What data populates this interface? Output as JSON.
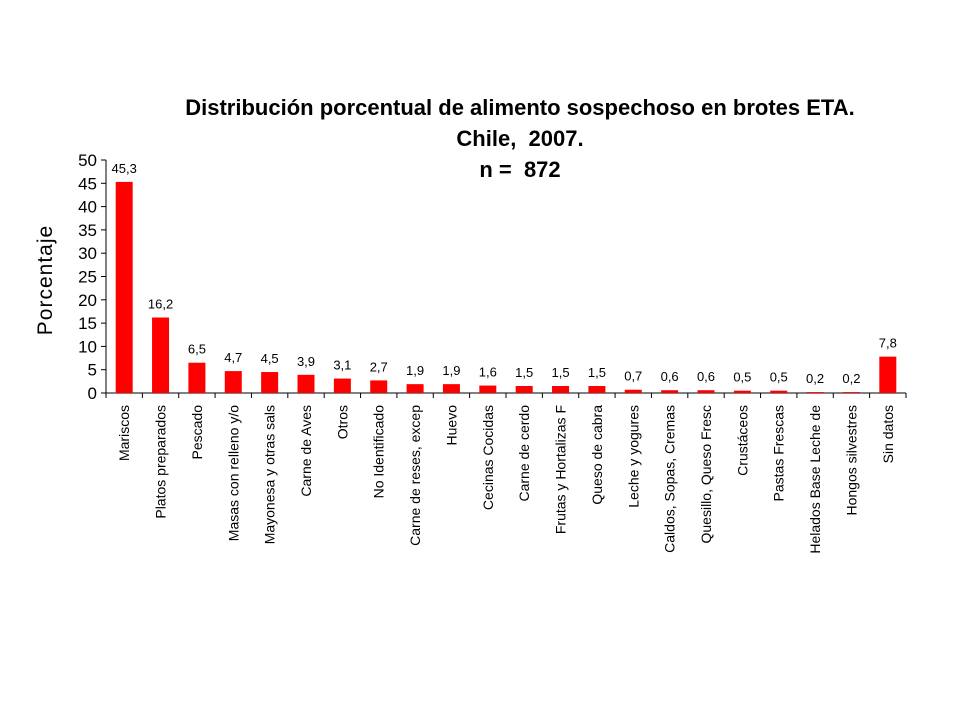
{
  "chart_data": {
    "type": "bar",
    "title": "Distribución porcentual de alimento sospechoso en brotes ETA.",
    "subtitle": "Chile,  2007.",
    "subtitle2": "n =  872",
    "xlabel": "",
    "ylabel": "Porcentaje",
    "ylim": [
      0,
      50
    ],
    "yticks": [
      0,
      5,
      10,
      15,
      20,
      25,
      30,
      35,
      40,
      45,
      50
    ],
    "grid": false,
    "bar_color": "#ff0000",
    "categories": [
      "Mariscos",
      "Platos preparados",
      "Pescado",
      "Masas con relleno y/o",
      "Mayonesa y otras sals",
      "Carne de Aves",
      "Otros",
      "No Identificado",
      "Carne de reses, excep",
      "Huevo",
      "Cecinas Cocidas",
      "Carne de cerdo",
      "Frutas y Hortalizas F",
      "Queso de cabra",
      "Leche y yogures",
      "Caldos, Sopas, Cremas",
      "Quesillo, Queso Fresc",
      "Crustáceos",
      "Pastas Frescas",
      "Helados Base Leche de",
      "Hongos silvestres",
      "Sin datos"
    ],
    "values": [
      45.3,
      16.2,
      6.5,
      4.7,
      4.5,
      3.9,
      3.1,
      2.7,
      1.9,
      1.9,
      1.6,
      1.5,
      1.5,
      1.5,
      0.7,
      0.6,
      0.6,
      0.5,
      0.5,
      0.2,
      0.2,
      7.8
    ],
    "value_labels": [
      "45,3",
      "16,2",
      "6,5",
      "4,7",
      "4,5",
      "3,9",
      "3,1",
      "2,7",
      "1,9",
      "1,9",
      "1,6",
      "1,5",
      "1,5",
      "1,5",
      "0,7",
      "0,6",
      "0,6",
      "0,5",
      "0,5",
      "0,2",
      "0,2",
      "7,8"
    ]
  }
}
